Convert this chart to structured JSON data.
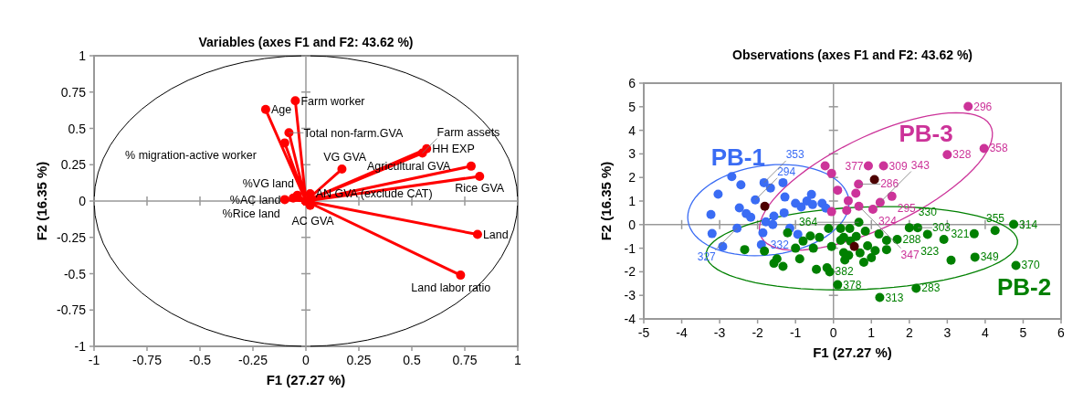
{
  "chart_data": [
    {
      "type": "scatter",
      "title": "Variables (axes F1 and F2: 43.62 %)",
      "xlabel": "F1 (27.27 %)",
      "ylabel": "F2 (16.35 %)",
      "xlim": [
        -1,
        1
      ],
      "ylim": [
        -1,
        1
      ],
      "xticks": [
        -1,
        -0.75,
        -0.5,
        -0.25,
        0,
        0.25,
        0.5,
        0.75,
        1
      ],
      "yticks": [
        -1,
        -0.75,
        -0.5,
        -0.25,
        0,
        0.25,
        0.5,
        0.75,
        1
      ],
      "series": [
        {
          "type": "line",
          "marker": "circle",
          "color": "#ff0000",
          "x": [
            0,
            -0.19,
            0,
            -0.05,
            0,
            -0.08,
            0,
            -0.1,
            0,
            -0.04,
            0,
            -0.06,
            0,
            -0.1,
            0,
            0.02,
            0,
            0.02,
            0,
            0.17,
            0,
            0.57,
            0,
            0.55,
            0,
            0.78,
            0,
            0.82,
            0,
            0.81,
            0,
            0.73
          ],
          "values": [
            0,
            0.63,
            0,
            0.69,
            0,
            0.47,
            0,
            0.4,
            0,
            0.04,
            0,
            0.02,
            0,
            0.01,
            0,
            0.05,
            0,
            -0.03,
            0,
            0.22,
            0,
            0.36,
            0,
            0.33,
            0,
            0.24,
            0,
            0.17,
            0,
            -0.23,
            0,
            -0.51
          ]
        }
      ],
      "annotations": [
        {
          "text": "Age",
          "x": -0.19,
          "y": 0.63
        },
        {
          "text": "Farm worker",
          "x": -0.05,
          "y": 0.69
        },
        {
          "text": "Total non-farm.GVA",
          "x": -0.08,
          "y": 0.47
        },
        {
          "text": "% migration-active worker",
          "x": -0.1,
          "y": 0.4
        },
        {
          "text": "%VG land",
          "x": -0.04,
          "y": 0.04
        },
        {
          "text": "%Rice land",
          "x": -0.06,
          "y": 0.02
        },
        {
          "text": "%AC land",
          "x": -0.1,
          "y": 0.01
        },
        {
          "text": "AN GVA (exclude CAT)",
          "x": 0.02,
          "y": 0.05
        },
        {
          "text": "AC GVA",
          "x": 0.02,
          "y": -0.03
        },
        {
          "text": "VG GVA",
          "x": 0.17,
          "y": 0.22
        },
        {
          "text": "HH EXP",
          "x": 0.57,
          "y": 0.36
        },
        {
          "text": "Farm assets",
          "x": 0.55,
          "y": 0.33
        },
        {
          "text": "Agricultural GVA",
          "x": 0.78,
          "y": 0.24
        },
        {
          "text": "Rice GVA",
          "x": 0.82,
          "y": 0.17
        },
        {
          "text": "Land",
          "x": 0.81,
          "y": -0.23
        },
        {
          "text": "Land labor ratio",
          "x": 0.73,
          "y": -0.51
        }
      ]
    },
    {
      "type": "scatter",
      "title": "Observations (axes F1 and F2: 43.62 %)",
      "xlabel": "F1 (27.27 %)",
      "ylabel": "F2 (16.35 %)",
      "xlim": [
        -5,
        6
      ],
      "ylim": [
        -4,
        6
      ],
      "xticks": [
        -5,
        -4,
        -3,
        -2,
        -1,
        0,
        1,
        2,
        3,
        4,
        5,
        6
      ],
      "yticks": [
        -4,
        -3,
        -2,
        -1,
        0,
        1,
        2,
        3,
        4,
        5,
        6
      ],
      "series": [
        {
          "type": "scatter",
          "marker": "circle",
          "name": "PB-1",
          "color": "#3a6cf4",
          "x": [
            -2.68,
            -3.04,
            -3.23,
            -2.44,
            -2.48,
            -2.06,
            -1.83,
            -1.66,
            -1.33,
            -1.28,
            -2.3,
            -2.18,
            -1.0,
            -0.85,
            -0.7,
            -0.55,
            -0.58,
            -3.2,
            -2.92,
            -2.54,
            -1.9,
            -1.86,
            -1.78,
            -1.57,
            -1.15,
            -0.94,
            -0.3,
            -0.2,
            -1.3,
            -1.6
          ],
          "values": [
            2.04,
            1.29,
            0.43,
            1.69,
            0.71,
            1.05,
            1.78,
            1.55,
            1.78,
            1.17,
            0.47,
            0.31,
            0.9,
            0.75,
            1.0,
            0.85,
            1.28,
            -0.38,
            -0.93,
            -0.15,
            -0.85,
            -0.35,
            0.12,
            0.36,
            -0.15,
            -0.41,
            0.9,
            0.7,
            0.5,
            0.0
          ]
        },
        {
          "type": "scatter",
          "marker": "circle",
          "name": "PB-3",
          "color": "#cc3399",
          "x": [
            3.55,
            3.0,
            3.97,
            0.92,
            1.32,
            -0.05,
            -0.22,
            0.66,
            0.11,
            0.59,
            1.54,
            1.23,
            0.67,
            1.04,
            -0.05,
            0.39,
            0.35
          ],
          "values": [
            5.01,
            2.97,
            3.23,
            2.49,
            2.49,
            2.17,
            2.49,
            1.72,
            1.46,
            1.33,
            1.2,
            0.94,
            0.78,
            0.65,
            0.55,
            1.01,
            0.6
          ]
        },
        {
          "type": "scatter",
          "marker": "circle",
          "name": "PB-2",
          "color": "#008000",
          "x": [
            0.67,
            2.0,
            2.22,
            2.48,
            2.91,
            3.71,
            4.26,
            4.75,
            3.1,
            3.73,
            4.81,
            2.18,
            1.22,
            0.11,
            -0.1,
            1.68,
            1.4,
            1.4,
            0.84,
            0.19,
            0.19,
            -0.05,
            0.27,
            -2.34,
            -1.57,
            -1.33,
            -1.82,
            -1.49,
            -0.89,
            -0.45,
            -0.17,
            -0.53,
            -0.37,
            0.27,
            -1.21,
            -0.61,
            -0.13,
            0.43,
            0.45,
            0.7,
            0.9,
            0.4,
            1.0,
            0.6,
            1.2,
            0.8,
            0.3,
            1.1,
            -1.0,
            -0.8
          ],
          "values": [
            0.1,
            -0.13,
            -0.13,
            -0.41,
            -0.63,
            -0.39,
            -0.25,
            0.01,
            -1.51,
            -1.38,
            -1.73,
            -2.7,
            -3.09,
            -2.55,
            -2.0,
            -0.63,
            -0.67,
            -1.06,
            -0.28,
            -0.16,
            -0.67,
            -0.93,
            -1.19,
            -1.06,
            -1.64,
            -1.77,
            -1.12,
            -1.45,
            -1.45,
            -1.9,
            -1.83,
            -1.0,
            -0.54,
            -0.54,
            -0.35,
            -0.48,
            -0.16,
            -0.16,
            -0.7,
            -1.2,
            -0.9,
            -1.3,
            -1.4,
            -0.5,
            -0.4,
            -1.6,
            -1.5,
            -1.1,
            -1.0,
            -0.7
          ]
        },
        {
          "type": "scatter",
          "marker": "circle",
          "color": "#4d0000",
          "x": [
            -1.81,
            1.08,
            0.55
          ],
          "values": [
            0.78,
            1.91,
            -0.93
          ]
        }
      ],
      "annotations": [
        {
          "text": "294",
          "x": -2.06,
          "y": 1.05
        },
        {
          "text": "353",
          "x": -1.83,
          "y": 1.78
        },
        {
          "text": "327",
          "x": -2.54,
          "y": -0.15
        },
        {
          "text": "332",
          "x": -1.9,
          "y": -0.85
        },
        {
          "text": "296",
          "x": 3.55,
          "y": 5.01
        },
        {
          "text": "328",
          "x": 3.0,
          "y": 2.97
        },
        {
          "text": "358",
          "x": 3.97,
          "y": 3.23
        },
        {
          "text": "377",
          "x": 0.92,
          "y": 2.49
        },
        {
          "text": "309",
          "x": 1.32,
          "y": 2.49
        },
        {
          "text": "286",
          "x": 0.66,
          "y": 1.72
        },
        {
          "text": "295",
          "x": 1.54,
          "y": 1.2
        },
        {
          "text": "343",
          "x": 1.23,
          "y": 0.94
        },
        {
          "text": "347",
          "x": 0.67,
          "y": 0.78
        },
        {
          "text": "324",
          "x": 1.04,
          "y": 0.65
        },
        {
          "text": "364",
          "x": 0.67,
          "y": 0.1
        },
        {
          "text": "330",
          "x": 2.0,
          "y": -0.13
        },
        {
          "text": "303",
          "x": 2.22,
          "y": -0.13
        },
        {
          "text": "323",
          "x": 2.91,
          "y": -0.63
        },
        {
          "text": "321",
          "x": 3.71,
          "y": -0.39
        },
        {
          "text": "355",
          "x": 4.26,
          "y": -0.25
        },
        {
          "text": "314",
          "x": 4.75,
          "y": 0.01
        },
        {
          "text": "349",
          "x": 3.73,
          "y": -1.38
        },
        {
          "text": "370",
          "x": 4.81,
          "y": -1.73
        },
        {
          "text": "283",
          "x": 2.18,
          "y": -2.7
        },
        {
          "text": "313",
          "x": 1.22,
          "y": -3.09
        },
        {
          "text": "378",
          "x": 0.11,
          "y": -2.55
        },
        {
          "text": "382",
          "x": -0.1,
          "y": -2.0
        },
        {
          "text": "288",
          "x": 1.68,
          "y": -0.63
        }
      ]
    }
  ]
}
